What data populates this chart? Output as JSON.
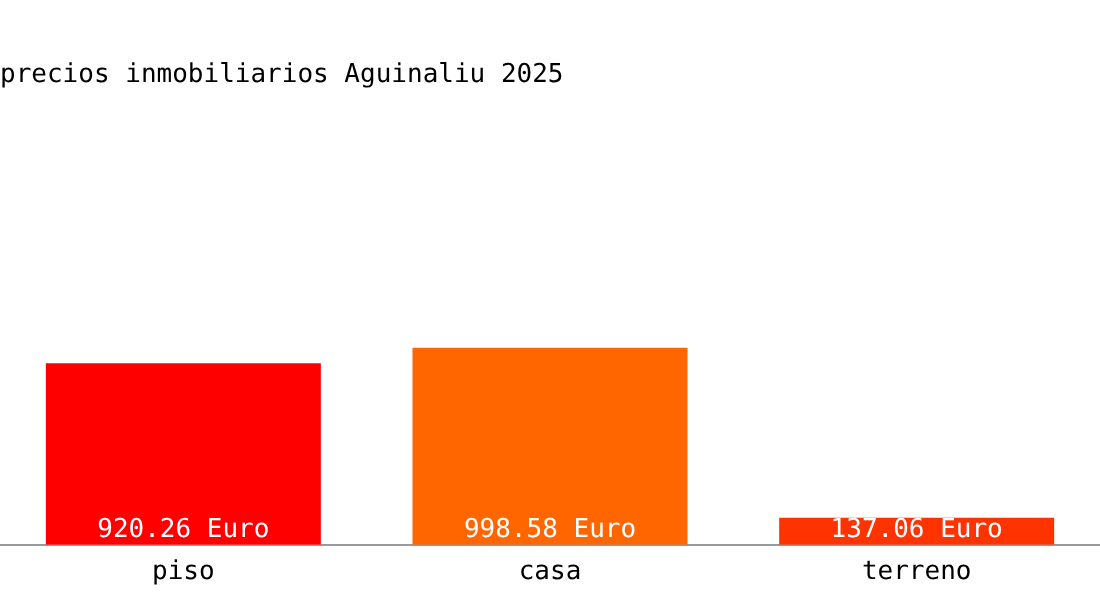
{
  "chart_data": {
    "type": "bar",
    "title": "precios inmobiliarios Aguinaliu 2025",
    "categories": [
      "piso",
      "casa",
      "terreno"
    ],
    "values": [
      920.26,
      998.58,
      137.06
    ],
    "colors": [
      "#ff0000",
      "#ff6600",
      "#ff3300"
    ],
    "value_labels": [
      "920.26 Euro",
      "998.58 Euro",
      "137.06 Euro"
    ],
    "grid": false,
    "legend": false
  }
}
